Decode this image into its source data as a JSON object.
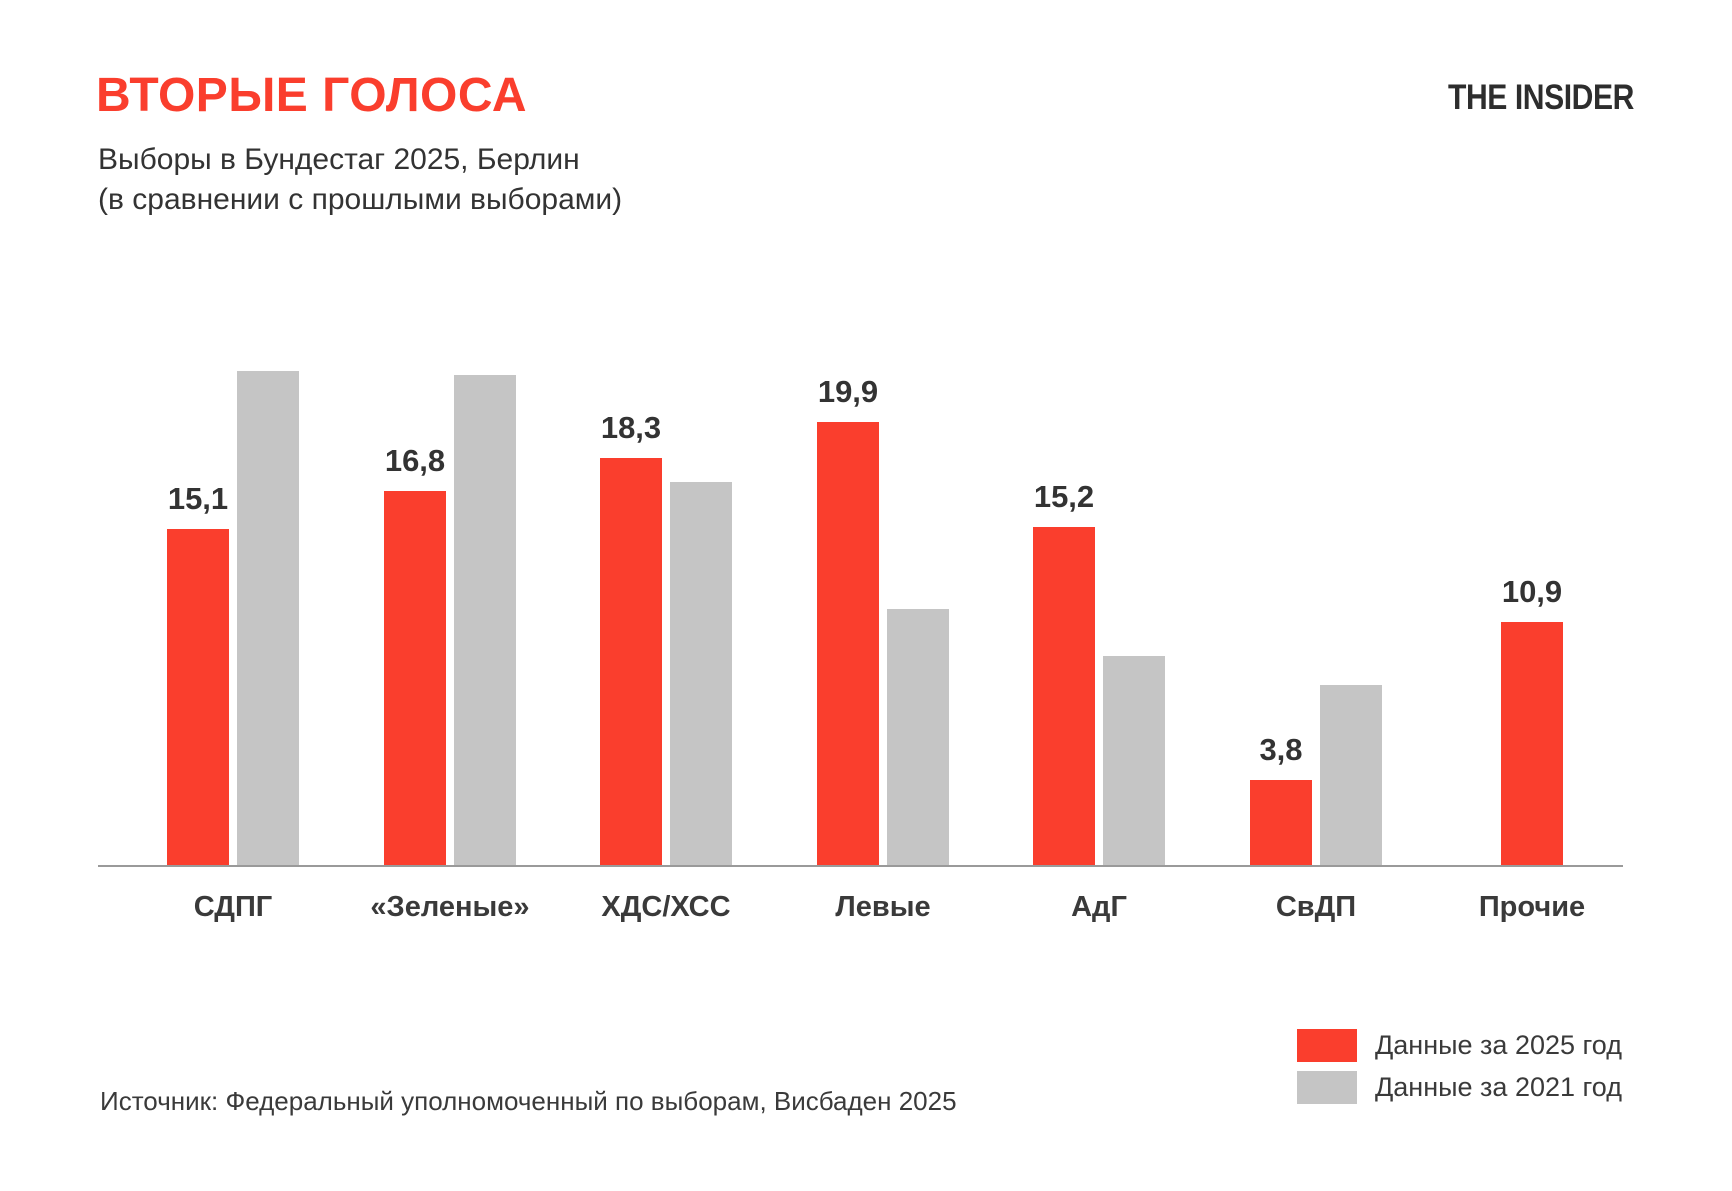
{
  "header": {
    "title": "ВТОРЫЕ ГОЛОСА",
    "subtitle_line1": "Выборы в Бундестаг 2025, Берлин",
    "subtitle_line2": "(в сравнении с прошлыми выборами)",
    "logo": "THE INSIDER"
  },
  "legend": {
    "items": [
      {
        "label": "Данные за 2025 год",
        "color": "#fa3e2d"
      },
      {
        "label": "Данные за 2021 год",
        "color": "#c5c5c5"
      }
    ]
  },
  "footer": {
    "source": "Источник: Федеральный уполномоченный по выборам, Висбаден 2025"
  },
  "colors": {
    "accent_red": "#fa3e2d",
    "bar_gray": "#c5c5c5",
    "axis": "#9a9a9a",
    "text_dark": "#333333"
  },
  "chart_data": {
    "type": "bar",
    "title": "ВТОРЫЕ ГОЛОСА",
    "subtitle": "Выборы в Бундестаг 2025, Берлин (в сравнении с прошлыми выборами)",
    "categories": [
      "СДПГ",
      "«Зеленые»",
      "ХДС/ХСС",
      "Левые",
      "АдГ",
      "СвДП",
      "Прочие"
    ],
    "series": [
      {
        "name": "Данные за 2025 год",
        "color": "#fa3e2d",
        "values": [
          15.1,
          16.8,
          18.3,
          19.9,
          15.2,
          3.8,
          10.9
        ],
        "value_labels": [
          "15,1",
          "16,8",
          "18,3",
          "19,9",
          "15,2",
          "3,8",
          "10,9"
        ],
        "labels_shown": true
      },
      {
        "name": "Данные за 2021 год",
        "color": "#c5c5c5",
        "values": [
          22.2,
          22.0,
          17.2,
          11.5,
          9.4,
          8.1,
          null
        ],
        "value_labels": [],
        "labels_shown": false
      }
    ],
    "xlabel": "",
    "ylabel": "",
    "ylim": [
      0,
      24
    ],
    "grid": false,
    "y_axis_shown": false,
    "legend_position": "bottom-right",
    "source": "Источник: Федеральный уполномоченный по выборам, Висбаден 2025"
  }
}
